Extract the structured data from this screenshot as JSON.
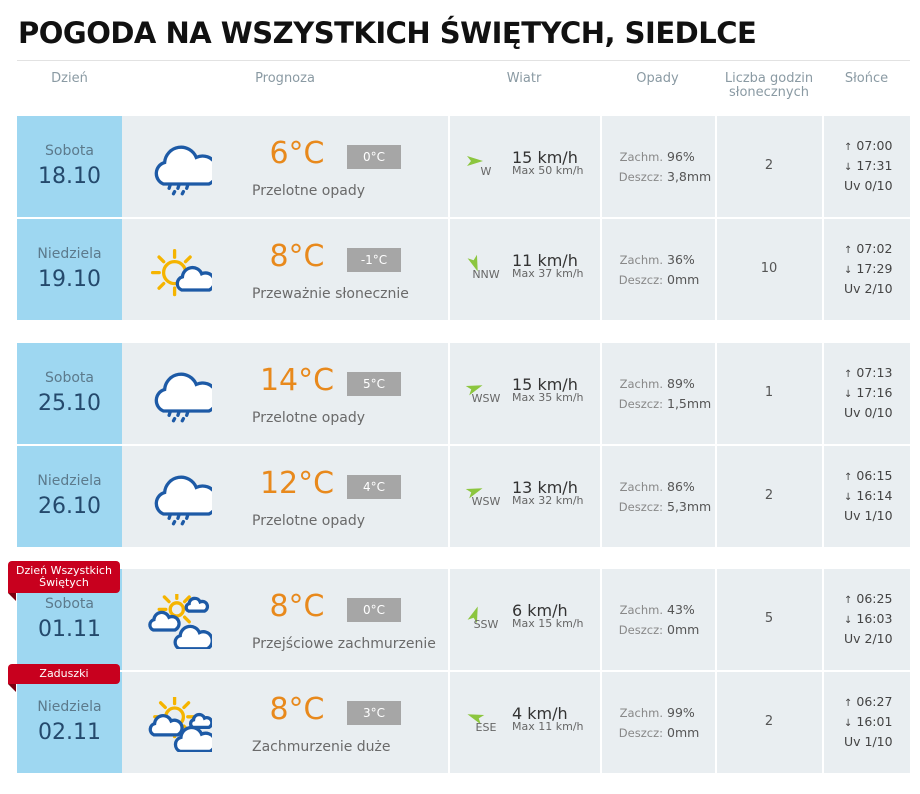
{
  "title": "POGODA NA WSZYSTKICH ŚWIĘTYCH, SIEDLCE",
  "headers": [
    "Dzień",
    "Prognoza",
    "Wiatr",
    "Opady",
    "Liczba godzin słonecznych",
    "Słońce"
  ],
  "cloud_label": "Zachm.",
  "rain_label": "Deszcz:",
  "rows": [
    {
      "day": "Sobota",
      "date": "18.10",
      "temp": "6°C",
      "feels": "0°C",
      "desc": "Przelotne opady",
      "wind_dir": "W",
      "wind": "15 km/h",
      "wind_max": "Max 50 km/h",
      "cloud": "96%",
      "rain": "3,8mm",
      "sun_hours": "2",
      "sunrise": "07:00",
      "sunset": "17:31",
      "uv": "Uv 0/10"
    },
    {
      "day": "Niedziela",
      "date": "19.10",
      "temp": "8°C",
      "feels": "-1°C",
      "desc": "Przeważnie słonecznie",
      "wind_dir": "NNW",
      "wind": "11 km/h",
      "wind_max": "Max 37 km/h",
      "cloud": "36%",
      "rain": "0mm",
      "sun_hours": "10",
      "sunrise": "07:02",
      "sunset": "17:29",
      "uv": "Uv 2/10"
    },
    {
      "day": "Sobota",
      "date": "25.10",
      "temp": "14°C",
      "feels": "5°C",
      "desc": "Przelotne opady",
      "wind_dir": "WSW",
      "wind": "15 km/h",
      "wind_max": "Max 35 km/h",
      "cloud": "89%",
      "rain": "1,5mm",
      "sun_hours": "1",
      "sunrise": "07:13",
      "sunset": "17:16",
      "uv": "Uv 0/10"
    },
    {
      "day": "Niedziela",
      "date": "26.10",
      "temp": "12°C",
      "feels": "4°C",
      "desc": "Przelotne opady",
      "wind_dir": "WSW",
      "wind": "13 km/h",
      "wind_max": "Max 32 km/h",
      "cloud": "86%",
      "rain": "5,3mm",
      "sun_hours": "2",
      "sunrise": "06:15",
      "sunset": "16:14",
      "uv": "Uv 1/10"
    },
    {
      "badge": "Dzień Wszystkich Świętych",
      "day": "Sobota",
      "date": "01.11",
      "temp": "8°C",
      "feels": "0°C",
      "desc": "Przejściowe zachmurzenie",
      "wind_dir": "SSW",
      "wind": "6 km/h",
      "wind_max": "Max 15 km/h",
      "cloud": "43%",
      "rain": "0mm",
      "sun_hours": "5",
      "sunrise": "06:25",
      "sunset": "16:03",
      "uv": "Uv 2/10"
    },
    {
      "badge": "Zaduszki",
      "day": "Niedziela",
      "date": "02.11",
      "temp": "8°C",
      "feels": "3°C",
      "desc": "Zachmurzenie duże",
      "wind_dir": "ESE",
      "wind": "4 km/h",
      "wind_max": "Max 11 km/h",
      "cloud": "99%",
      "rain": "0mm",
      "sun_hours": "2",
      "sunrise": "06:27",
      "sunset": "16:01",
      "uv": "Uv 1/10"
    }
  ]
}
